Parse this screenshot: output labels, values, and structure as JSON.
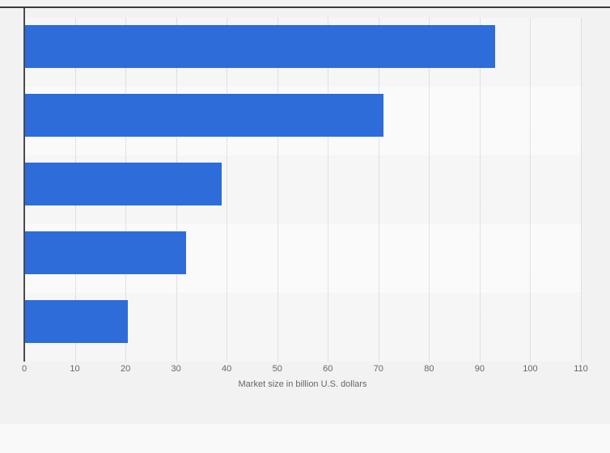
{
  "chart_data": {
    "type": "bar",
    "orientation": "horizontal",
    "title": "",
    "categories": [
      "",
      "",
      "",
      "",
      ""
    ],
    "values": [
      93,
      71,
      39,
      32,
      20.5
    ],
    "series": [
      {
        "name": "Market size",
        "values": [
          93,
          71,
          39,
          32,
          20.5
        ]
      }
    ],
    "xlabel": "Market size in billion U.S. dollars",
    "ylabel": "",
    "xlim": [
      0,
      110
    ],
    "ticks": [
      0,
      10,
      20,
      30,
      40,
      50,
      60,
      70,
      80,
      90,
      100,
      110
    ],
    "grid": "vertical-dotted",
    "legend": "none",
    "bar_color": "#2d6cd9"
  },
  "axis": {
    "tick_labels": [
      "0",
      "10",
      "20",
      "30",
      "40",
      "50",
      "60",
      "70",
      "80",
      "90",
      "100",
      "110"
    ],
    "title": "Market size in billion U.S. dollars"
  },
  "colors": {
    "bar": "#2d6cd9",
    "page_background": "#f2f2f3",
    "stripe_even": "#f6f6f7",
    "stripe_odd": "#fafafa",
    "gridline": "#c9c9c9",
    "axis_line": "#4a4a4a",
    "tick_text": "#666666"
  }
}
